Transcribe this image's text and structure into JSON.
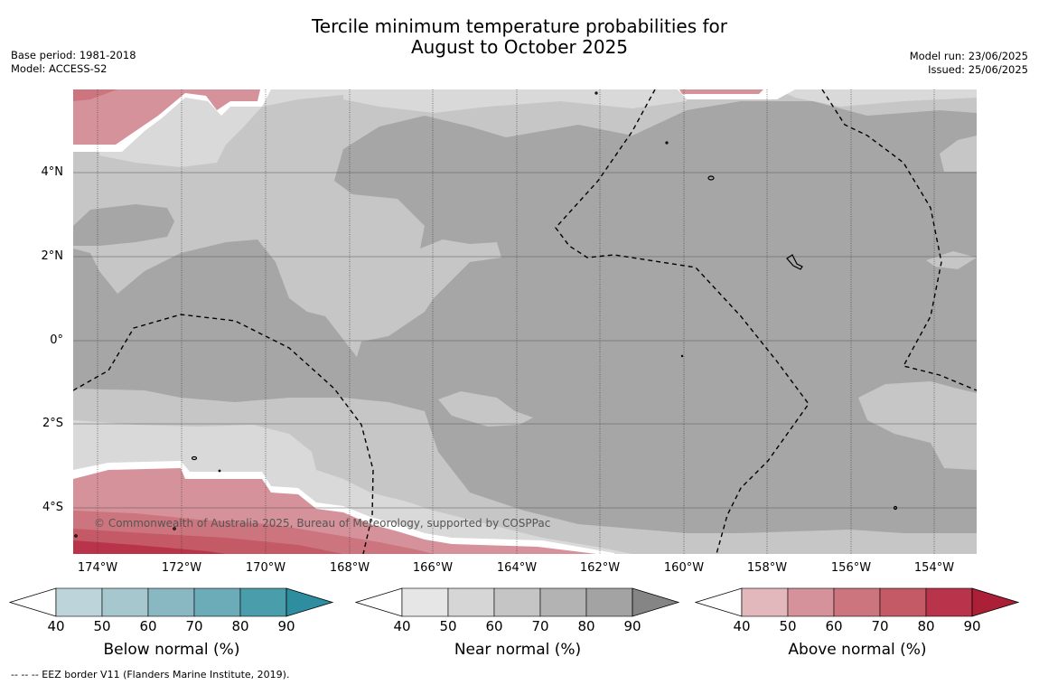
{
  "title": {
    "line1": "Tercile minimum temperature probabilities for",
    "line2": "August to October 2025"
  },
  "meta_left": {
    "base_period": "Base period: 1981-2018",
    "model": "Model: ACCESS-S2"
  },
  "meta_right": {
    "model_run": "Model run: 23/06/2025",
    "issued": "Issued: 25/06/2025"
  },
  "map": {
    "lat_labels": [
      "4°N",
      "2°N",
      "0°",
      "2°S",
      "4°S"
    ],
    "lon_labels": [
      "174°W",
      "172°W",
      "170°W",
      "168°W",
      "166°W",
      "164°W",
      "162°W",
      "160°W",
      "158°W",
      "156°W",
      "154°W"
    ],
    "copyright": "© Commonwealth of Australia 2025, Bureau of Meteorology, supported by COSPPac"
  },
  "colorbars": [
    {
      "label": "Below normal (%)",
      "ticks": [
        "40",
        "50",
        "60",
        "70",
        "80",
        "90"
      ],
      "colors": [
        "#ffffff",
        "#bcd4da",
        "#a6c7cd",
        "#89b8c3",
        "#6cacb9",
        "#4a9daa",
        "#2e8ea0"
      ]
    },
    {
      "label": "Near normal (%)",
      "ticks": [
        "40",
        "50",
        "60",
        "70",
        "80",
        "90"
      ],
      "colors": [
        "#ffffff",
        "#e6e6e6",
        "#d6d6d6",
        "#c5c5c5",
        "#b3b3b3",
        "#a3a3a3",
        "#858585"
      ]
    },
    {
      "label": "Above normal (%)",
      "ticks": [
        "40",
        "50",
        "60",
        "70",
        "80",
        "90"
      ],
      "colors": [
        "#ffffff",
        "#e3b8bd",
        "#d6929a",
        "#cd757e",
        "#c45a66",
        "#b9344a",
        "#ab1f37"
      ]
    }
  ],
  "footnote": "--  --  -- EEZ border V11 (Flanders Marine Institute, 2019)."
}
